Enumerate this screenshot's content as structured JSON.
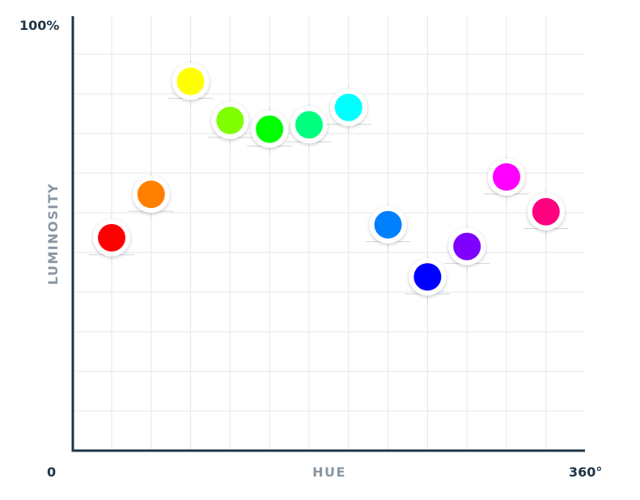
{
  "chart_data": {
    "type": "scatter",
    "xlabel": "HUE",
    "ylabel": "LUMINOSITY",
    "x_min_label": "0",
    "x_max_label": "360°",
    "y_max_label": "100%",
    "xlim": [
      0,
      360
    ],
    "ylim": [
      0,
      100
    ],
    "grid": true,
    "legend": "none",
    "axis_color": "#1f3446",
    "grid_color": "#e4e7eb",
    "points": [
      {
        "x": 0,
        "y": 49,
        "color": "#ff0000"
      },
      {
        "x": 30,
        "y": 59,
        "color": "#ff7f00"
      },
      {
        "x": 60,
        "y": 85,
        "color": "#ffff00"
      },
      {
        "x": 90,
        "y": 76,
        "color": "#7fff00"
      },
      {
        "x": 120,
        "y": 74,
        "color": "#00ff00"
      },
      {
        "x": 150,
        "y": 75,
        "color": "#00ff7f"
      },
      {
        "x": 180,
        "y": 79,
        "color": "#00ffff"
      },
      {
        "x": 210,
        "y": 52,
        "color": "#007fff"
      },
      {
        "x": 240,
        "y": 40,
        "color": "#0000ff"
      },
      {
        "x": 270,
        "y": 47,
        "color": "#7f00ff"
      },
      {
        "x": 300,
        "y": 63,
        "color": "#ff00ff"
      },
      {
        "x": 330,
        "y": 55,
        "color": "#ff007f"
      }
    ]
  }
}
